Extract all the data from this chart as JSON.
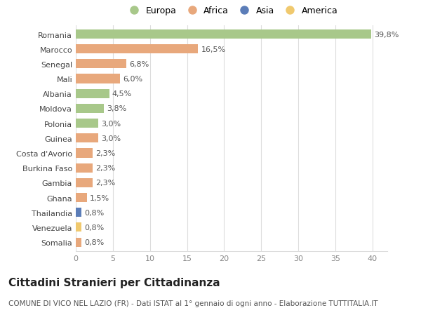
{
  "categories": [
    "Romania",
    "Marocco",
    "Senegal",
    "Mali",
    "Albania",
    "Moldova",
    "Polonia",
    "Guinea",
    "Costa d'Avorio",
    "Burkina Faso",
    "Gambia",
    "Ghana",
    "Thailandia",
    "Venezuela",
    "Somalia"
  ],
  "values": [
    39.8,
    16.5,
    6.8,
    6.0,
    4.5,
    3.8,
    3.0,
    3.0,
    2.3,
    2.3,
    2.3,
    1.5,
    0.8,
    0.8,
    0.8
  ],
  "labels": [
    "39,8%",
    "16,5%",
    "6,8%",
    "6,0%",
    "4,5%",
    "3,8%",
    "3,0%",
    "3,0%",
    "2,3%",
    "2,3%",
    "2,3%",
    "1,5%",
    "0,8%",
    "0,8%",
    "0,8%"
  ],
  "continents": [
    "Europa",
    "Africa",
    "Africa",
    "Africa",
    "Europa",
    "Europa",
    "Europa",
    "Africa",
    "Africa",
    "Africa",
    "Africa",
    "Africa",
    "Asia",
    "America",
    "Africa"
  ],
  "continent_colors": {
    "Europa": "#a8c88a",
    "Africa": "#e8a87c",
    "Asia": "#5b7db8",
    "America": "#f0c96e"
  },
  "legend_order": [
    "Europa",
    "Africa",
    "Asia",
    "America"
  ],
  "title": "Cittadini Stranieri per Cittadinanza",
  "subtitle": "COMUNE DI VICO NEL LAZIO (FR) - Dati ISTAT al 1° gennaio di ogni anno - Elaborazione TUTTITALIA.IT",
  "xlim": [
    0,
    42
  ],
  "xticks": [
    0,
    5,
    10,
    15,
    20,
    25,
    30,
    35,
    40
  ],
  "background_color": "#ffffff",
  "grid_color": "#dddddd",
  "title_fontsize": 11,
  "subtitle_fontsize": 7.5,
  "label_fontsize": 8,
  "tick_fontsize": 8
}
